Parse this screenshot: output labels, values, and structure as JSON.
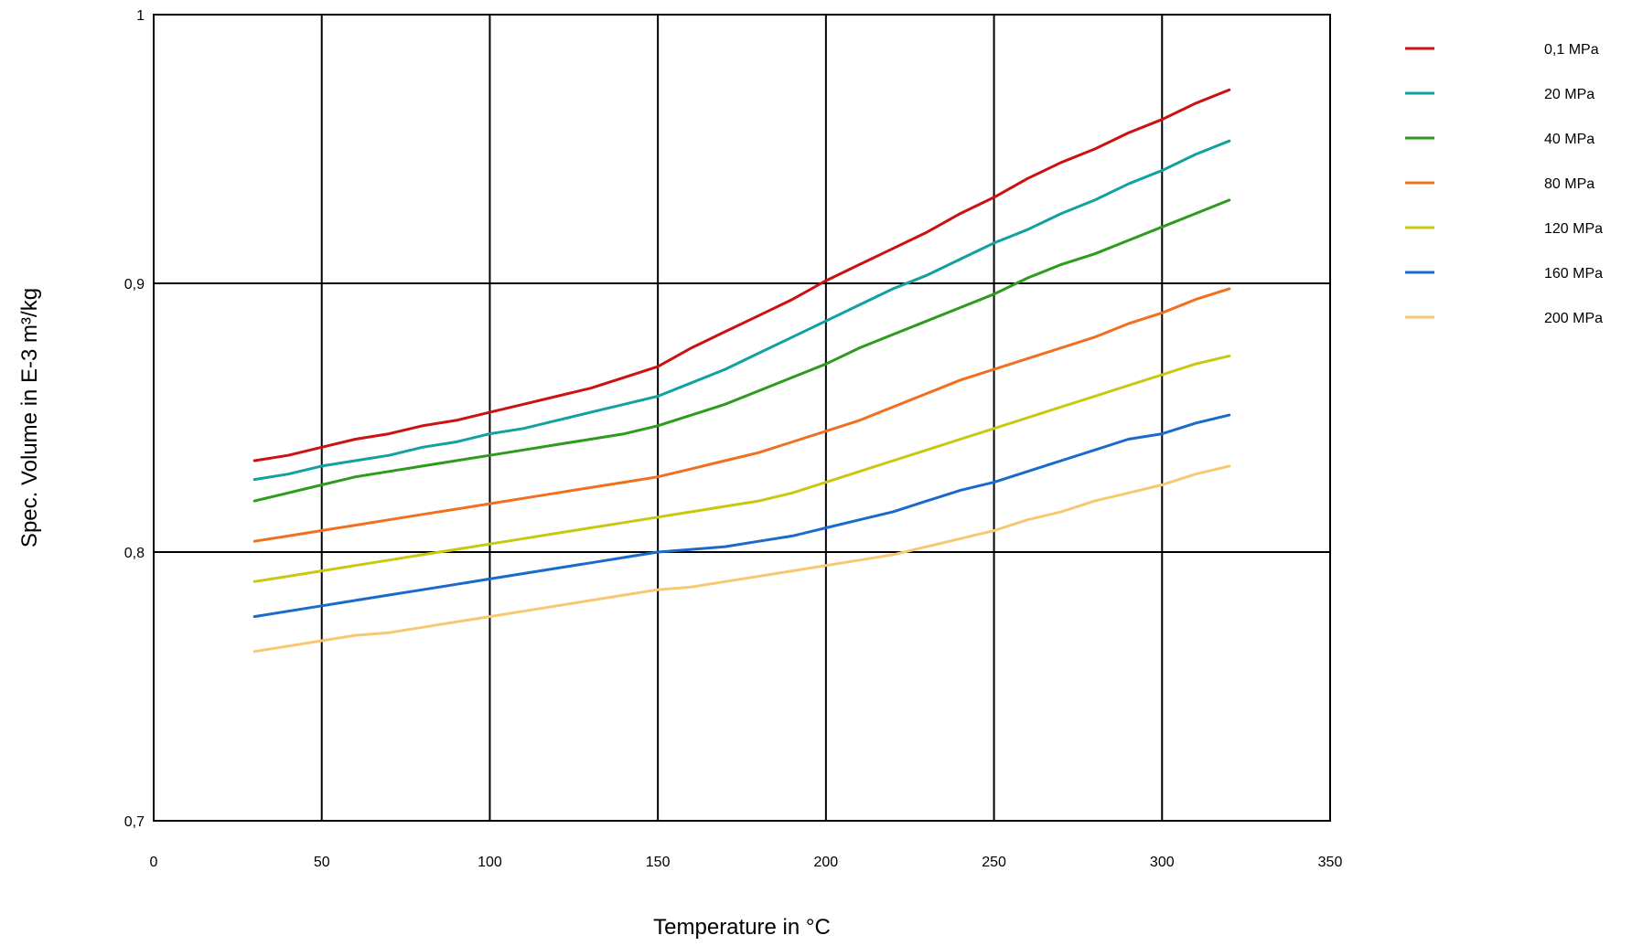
{
  "chart_data": {
    "type": "line",
    "title": "",
    "xlabel": "Temperature in °C",
    "ylabel": "Spec. Volume in E-3 m³/kg",
    "xlim": [
      0,
      350
    ],
    "ylim": [
      0.7,
      1.0
    ],
    "x_ticks": [
      0,
      50,
      100,
      150,
      200,
      250,
      300,
      350
    ],
    "x_tick_labels": [
      "0",
      "50",
      "100",
      "150",
      "200",
      "250",
      "300",
      "350"
    ],
    "y_ticks": [
      0.7,
      0.8,
      0.9,
      1.0
    ],
    "y_tick_labels": [
      "0,7",
      "0,8",
      "0,9",
      "1"
    ],
    "grid": true,
    "legend_position": "right",
    "x": [
      30,
      40,
      50,
      60,
      70,
      80,
      90,
      100,
      110,
      120,
      130,
      140,
      150,
      160,
      170,
      180,
      190,
      200,
      210,
      220,
      230,
      240,
      250,
      260,
      270,
      280,
      290,
      300,
      310,
      320
    ],
    "series": [
      {
        "name": "0,1 MPa",
        "color": "#cc1111",
        "values": [
          0.834,
          0.836,
          0.839,
          0.842,
          0.844,
          0.847,
          0.849,
          0.852,
          0.855,
          0.858,
          0.861,
          0.865,
          0.869,
          0.876,
          0.882,
          0.888,
          0.894,
          0.901,
          0.907,
          0.913,
          0.919,
          0.926,
          0.932,
          0.939,
          0.945,
          0.95,
          0.956,
          0.961,
          0.967,
          0.972
        ]
      },
      {
        "name": "20 MPa",
        "color": "#12a0a0",
        "values": [
          0.827,
          0.829,
          0.832,
          0.834,
          0.836,
          0.839,
          0.841,
          0.844,
          0.846,
          0.849,
          0.852,
          0.855,
          0.858,
          0.863,
          0.868,
          0.874,
          0.88,
          0.886,
          0.892,
          0.898,
          0.903,
          0.909,
          0.915,
          0.92,
          0.926,
          0.931,
          0.937,
          0.942,
          0.948,
          0.953
        ]
      },
      {
        "name": "40 MPa",
        "color": "#2e9a1e",
        "values": [
          0.819,
          0.822,
          0.825,
          0.828,
          0.83,
          0.832,
          0.834,
          0.836,
          0.838,
          0.84,
          0.842,
          0.844,
          0.847,
          0.851,
          0.855,
          0.86,
          0.865,
          0.87,
          0.876,
          0.881,
          0.886,
          0.891,
          0.896,
          0.902,
          0.907,
          0.911,
          0.916,
          0.921,
          0.926,
          0.931
        ]
      },
      {
        "name": "80 MPa",
        "color": "#f07020",
        "values": [
          0.804,
          0.806,
          0.808,
          0.81,
          0.812,
          0.814,
          0.816,
          0.818,
          0.82,
          0.822,
          0.824,
          0.826,
          0.828,
          0.831,
          0.834,
          0.837,
          0.841,
          0.845,
          0.849,
          0.854,
          0.859,
          0.864,
          0.868,
          0.872,
          0.876,
          0.88,
          0.885,
          0.889,
          0.894,
          0.898
        ]
      },
      {
        "name": "120 MPa",
        "color": "#c8c810",
        "values": [
          0.789,
          0.791,
          0.793,
          0.795,
          0.797,
          0.799,
          0.801,
          0.803,
          0.805,
          0.807,
          0.809,
          0.811,
          0.813,
          0.815,
          0.817,
          0.819,
          0.822,
          0.826,
          0.83,
          0.834,
          0.838,
          0.842,
          0.846,
          0.85,
          0.854,
          0.858,
          0.862,
          0.866,
          0.87,
          0.873
        ]
      },
      {
        "name": "160 MPa",
        "color": "#1a6acc",
        "values": [
          0.776,
          0.778,
          0.78,
          0.782,
          0.784,
          0.786,
          0.788,
          0.79,
          0.792,
          0.794,
          0.796,
          0.798,
          0.8,
          0.801,
          0.802,
          0.804,
          0.806,
          0.809,
          0.812,
          0.815,
          0.819,
          0.823,
          0.826,
          0.83,
          0.834,
          0.838,
          0.842,
          0.844,
          0.848,
          0.851
        ]
      },
      {
        "name": "200 MPa",
        "color": "#f8c870",
        "values": [
          0.763,
          0.765,
          0.767,
          0.769,
          0.77,
          0.772,
          0.774,
          0.776,
          0.778,
          0.78,
          0.782,
          0.784,
          0.786,
          0.787,
          0.789,
          0.791,
          0.793,
          0.795,
          0.797,
          0.799,
          0.802,
          0.805,
          0.808,
          0.812,
          0.815,
          0.819,
          0.822,
          0.825,
          0.829,
          0.832
        ]
      }
    ]
  }
}
